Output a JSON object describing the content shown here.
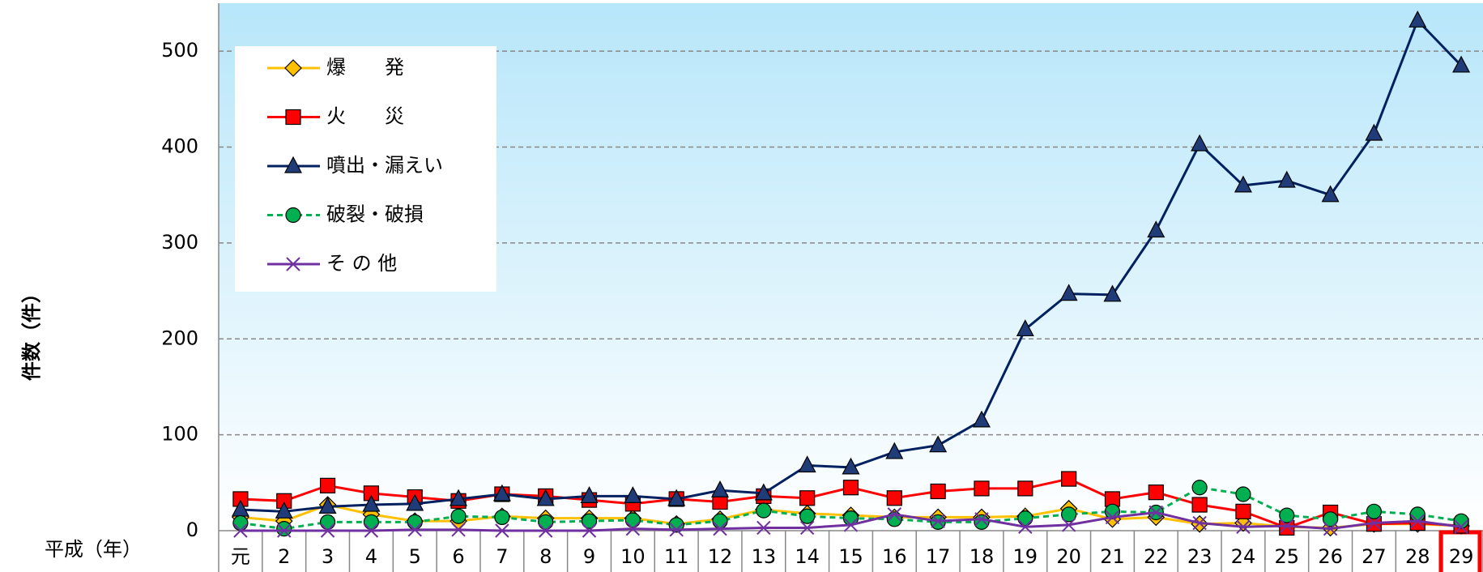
{
  "chart_data": {
    "type": "line",
    "y_label": "件数（件）",
    "x_label": "平成（年）",
    "categories": [
      "元",
      "2",
      "3",
      "4",
      "5",
      "6",
      "7",
      "8",
      "9",
      "10",
      "11",
      "12",
      "13",
      "14",
      "15",
      "16",
      "17",
      "18",
      "19",
      "20",
      "21",
      "22",
      "23",
      "24",
      "25",
      "26",
      "27",
      "28",
      "29"
    ],
    "ylim": [
      0,
      550
    ],
    "yticks": [
      0,
      100,
      200,
      300,
      400,
      500
    ],
    "grid": true,
    "legend": "upper left",
    "highlight_category": 28,
    "series": [
      {
        "name": "爆　　発",
        "color": "#ffc000",
        "marker": "diamond",
        "dash": false,
        "values": [
          14,
          10,
          27,
          17,
          10,
          10,
          15,
          13,
          13,
          13,
          7,
          12,
          22,
          18,
          16,
          14,
          14,
          14,
          15,
          23,
          12,
          14,
          7,
          8,
          4,
          3,
          7,
          7,
          5
        ]
      },
      {
        "name": "火　　災",
        "color": "#ff0000",
        "marker": "square",
        "dash": false,
        "values": [
          33,
          31,
          47,
          39,
          35,
          31,
          38,
          36,
          32,
          28,
          33,
          30,
          36,
          34,
          45,
          34,
          41,
          44,
          44,
          54,
          33,
          40,
          27,
          20,
          3,
          19,
          7,
          8,
          5
        ]
      },
      {
        "name": "噴出・漏えい",
        "color": "#002060",
        "marker": "triangle",
        "dash": false,
        "values": [
          22,
          20,
          25,
          27,
          28,
          33,
          38,
          33,
          36,
          36,
          33,
          42,
          39,
          68,
          66,
          82,
          89,
          115,
          210,
          247,
          246,
          313,
          403,
          360,
          365,
          350,
          414,
          532,
          485
        ]
      },
      {
        "name": "破裂・破損",
        "color": "#00b050",
        "marker": "circle",
        "dash": true,
        "values": [
          8,
          2,
          9,
          9,
          9,
          15,
          14,
          9,
          10,
          11,
          6,
          10,
          21,
          15,
          13,
          12,
          9,
          9,
          13,
          17,
          20,
          19,
          45,
          38,
          16,
          12,
          20,
          17,
          10
        ]
      },
      {
        "name": "そ の 他",
        "color": "#7030a0",
        "marker": "x",
        "dash": false,
        "values": [
          0,
          0,
          0,
          0,
          1,
          1,
          0,
          0,
          0,
          2,
          1,
          2,
          3,
          3,
          6,
          17,
          10,
          12,
          4,
          6,
          14,
          19,
          8,
          4,
          5,
          2,
          8,
          10,
          4
        ]
      }
    ]
  }
}
